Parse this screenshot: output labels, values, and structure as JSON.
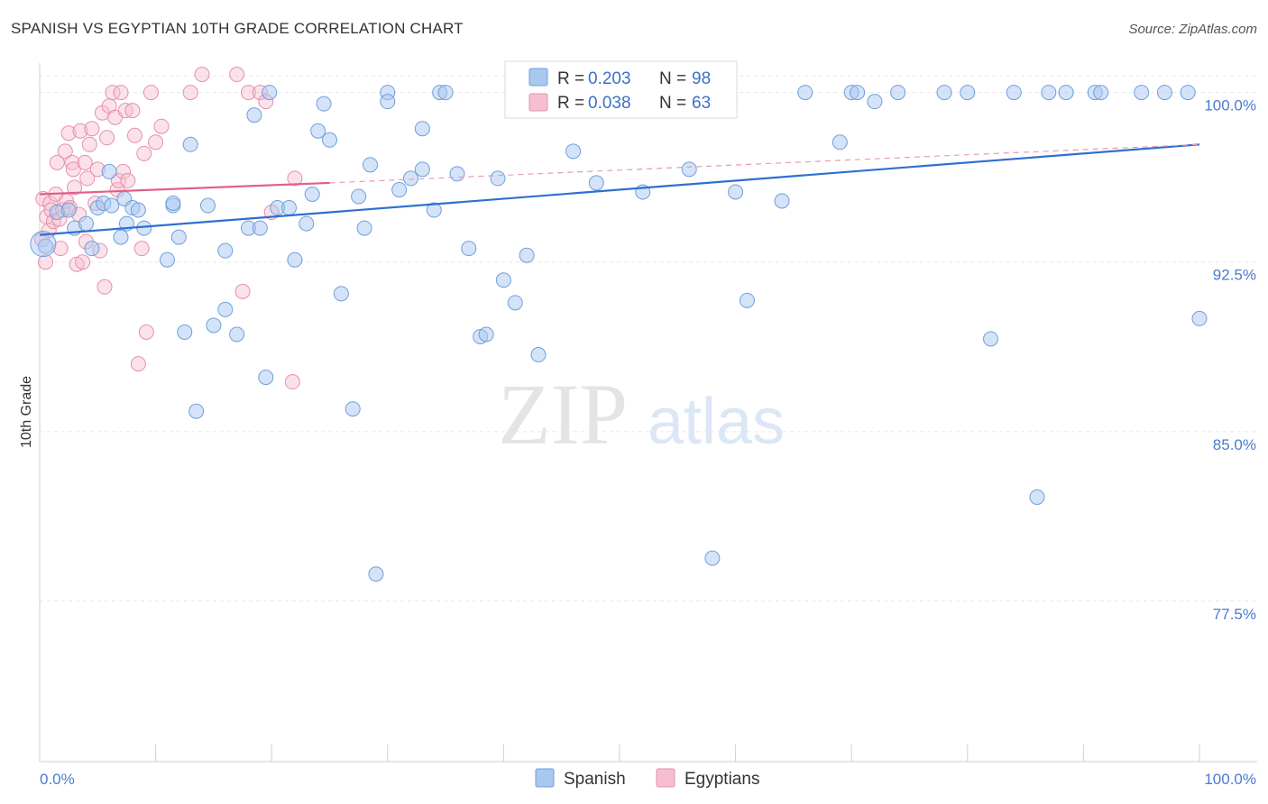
{
  "title": "SPANISH VS EGYPTIAN 10TH GRADE CORRELATION CHART",
  "source": "Source: ZipAtlas.com",
  "watermark": {
    "zip": "ZIP",
    "atlas": "atlas"
  },
  "legend": {
    "r_label": "R =",
    "n_label": "N =",
    "spanish": {
      "r": "0.203",
      "n": "98"
    },
    "egyptians": {
      "r": "0.038",
      "n": "63"
    }
  },
  "colors": {
    "spanish_fill": "#a9c8f0",
    "spanish_stroke": "#6f9fdc",
    "spanish_line": "#2f6fd0",
    "egypt_fill": "#f6bfd0",
    "egypt_stroke": "#e78fac",
    "egypt_line": "#e0608a",
    "axis_text": "#4a7bd0"
  },
  "chart_data": {
    "type": "scatter",
    "title": "SPANISH VS EGYPTIAN 10TH GRADE CORRELATION CHART",
    "ylabel": "10th Grade",
    "xlabel": "",
    "xlim": [
      0,
      100
    ],
    "ylim": [
      70.4,
      101.3
    ],
    "y_ticks": [
      77.5,
      85.0,
      92.5,
      100.0
    ],
    "y_tick_labels": [
      "77.5%",
      "85.0%",
      "92.5%",
      "100.0%"
    ],
    "x_tick_labels": [
      "0.0%",
      "100.0%"
    ],
    "grid": true,
    "series": [
      {
        "name": "Spanish",
        "r": 0.203,
        "n": 98,
        "trend": {
          "x0": 0,
          "y0": 93.7,
          "x1": 100,
          "y1": 97.7
        },
        "points": [
          [
            0.5,
            93.2
          ],
          [
            1.5,
            94.7
          ],
          [
            2.5,
            94.8
          ],
          [
            3,
            94
          ],
          [
            4,
            94.2
          ],
          [
            4.5,
            93.1
          ],
          [
            5,
            94.9
          ],
          [
            5.5,
            95.1
          ],
          [
            6,
            96.5
          ],
          [
            6.2,
            95
          ],
          [
            7,
            93.6
          ],
          [
            7.5,
            94.2
          ],
          [
            7.3,
            95.3
          ],
          [
            8,
            94.9
          ],
          [
            9,
            94
          ],
          [
            8.5,
            94.8
          ],
          [
            11.5,
            95
          ],
          [
            12,
            93.6
          ],
          [
            12.5,
            89.4
          ],
          [
            11,
            92.6
          ],
          [
            11.5,
            95.1
          ],
          [
            14.5,
            95
          ],
          [
            13,
            97.7
          ],
          [
            16,
            90.4
          ],
          [
            15,
            89.7
          ],
          [
            13.5,
            85.9
          ],
          [
            16,
            93
          ],
          [
            17,
            89.3
          ],
          [
            18,
            94
          ],
          [
            18.5,
            99
          ],
          [
            19,
            94
          ],
          [
            19.5,
            87.4
          ],
          [
            20.5,
            94.9
          ],
          [
            21.5,
            94.9
          ],
          [
            22,
            92.6
          ],
          [
            23,
            94.2
          ],
          [
            23.5,
            95.5
          ],
          [
            24,
            98.3
          ],
          [
            19.8,
            100
          ],
          [
            24.5,
            99.5
          ],
          [
            25,
            97.9
          ],
          [
            26,
            91.1
          ],
          [
            27,
            86
          ],
          [
            27.5,
            95.4
          ],
          [
            28,
            94
          ],
          [
            28.5,
            96.8
          ],
          [
            29,
            78.7
          ],
          [
            30,
            100
          ],
          [
            30,
            99.6
          ],
          [
            31,
            95.7
          ],
          [
            32,
            96.2
          ],
          [
            33,
            96.6
          ],
          [
            33,
            98.4
          ],
          [
            34,
            94.8
          ],
          [
            34.5,
            100
          ],
          [
            35,
            100
          ],
          [
            36,
            96.4
          ],
          [
            37,
            93.1
          ],
          [
            38,
            89.2
          ],
          [
            38.5,
            89.3
          ],
          [
            39.5,
            96.2
          ],
          [
            40,
            91.7
          ],
          [
            41,
            100
          ],
          [
            41,
            90.7
          ],
          [
            42,
            92.8
          ],
          [
            43,
            88.4
          ],
          [
            44,
            100
          ],
          [
            46,
            97.4
          ],
          [
            46.5,
            100
          ],
          [
            48,
            96
          ],
          [
            50,
            100
          ],
          [
            52,
            95.6
          ],
          [
            53,
            100
          ],
          [
            55,
            100
          ],
          [
            56,
            96.6
          ],
          [
            58,
            79.4
          ],
          [
            59.5,
            99.7
          ],
          [
            60,
            95.6
          ],
          [
            61,
            90.8
          ],
          [
            64,
            95.2
          ],
          [
            66,
            100
          ],
          [
            69,
            97.8
          ],
          [
            70,
            100
          ],
          [
            70.5,
            100
          ],
          [
            72,
            99.6
          ],
          [
            74,
            100
          ],
          [
            78,
            100
          ],
          [
            80,
            100
          ],
          [
            82,
            89.1
          ],
          [
            84,
            100
          ],
          [
            86,
            82.1
          ],
          [
            87,
            100
          ],
          [
            88.5,
            100
          ],
          [
            91,
            100
          ],
          [
            91.5,
            100
          ],
          [
            95,
            100
          ],
          [
            97,
            100
          ],
          [
            99,
            100
          ],
          [
            100,
            90
          ]
        ]
      },
      {
        "name": "Egyptians",
        "r": 0.038,
        "n": 63,
        "trend_solid": {
          "x0": 0,
          "y0": 95.5,
          "x1": 25,
          "y1": 96.0
        },
        "trend_dashed": {
          "x0": 25,
          "y0": 96.0,
          "x1": 100,
          "y1": 97.7
        },
        "points": [
          [
            0.2,
            93.5
          ],
          [
            0.3,
            95.3
          ],
          [
            0.5,
            92.5
          ],
          [
            0.6,
            94.5
          ],
          [
            0.8,
            93.9
          ],
          [
            0.9,
            95.1
          ],
          [
            1,
            94.8
          ],
          [
            1.2,
            94.3
          ],
          [
            1.4,
            95.5
          ],
          [
            1.5,
            96.9
          ],
          [
            1.7,
            94.4
          ],
          [
            1.8,
            93.1
          ],
          [
            2,
            94.8
          ],
          [
            2.2,
            97.4
          ],
          [
            2.3,
            95.2
          ],
          [
            2.5,
            98.2
          ],
          [
            2.6,
            94.9
          ],
          [
            2.8,
            96.9
          ],
          [
            2.9,
            96.6
          ],
          [
            3,
            95.8
          ],
          [
            3.2,
            92.4
          ],
          [
            3.4,
            94.6
          ],
          [
            3.5,
            98.3
          ],
          [
            3.7,
            92.5
          ],
          [
            3.9,
            96.9
          ],
          [
            4,
            93.4
          ],
          [
            4.1,
            96.2
          ],
          [
            4.3,
            97.7
          ],
          [
            4.5,
            98.4
          ],
          [
            4.8,
            95.1
          ],
          [
            5,
            96.6
          ],
          [
            5.2,
            93
          ],
          [
            5.4,
            99.1
          ],
          [
            5.6,
            91.4
          ],
          [
            5.8,
            98
          ],
          [
            6,
            99.4
          ],
          [
            6.3,
            100
          ],
          [
            6.5,
            98.9
          ],
          [
            6.7,
            95.7
          ],
          [
            6.8,
            96.1
          ],
          [
            7,
            100
          ],
          [
            7.2,
            96.5
          ],
          [
            7.4,
            99.2
          ],
          [
            7.6,
            96.1
          ],
          [
            8,
            99.2
          ],
          [
            8.2,
            98.1
          ],
          [
            8.8,
            93.1
          ],
          [
            8.5,
            88
          ],
          [
            9,
            97.3
          ],
          [
            9.2,
            89.4
          ],
          [
            9.6,
            100
          ],
          [
            10,
            97.8
          ],
          [
            10.5,
            98.5
          ],
          [
            13,
            100
          ],
          [
            14,
            100.8
          ],
          [
            17,
            100.8
          ],
          [
            18,
            100
          ],
          [
            19,
            100
          ],
          [
            17.5,
            91.2
          ],
          [
            19.5,
            99.6
          ],
          [
            20,
            94.7
          ],
          [
            21.8,
            87.2
          ],
          [
            22,
            96.2
          ]
        ]
      }
    ]
  }
}
